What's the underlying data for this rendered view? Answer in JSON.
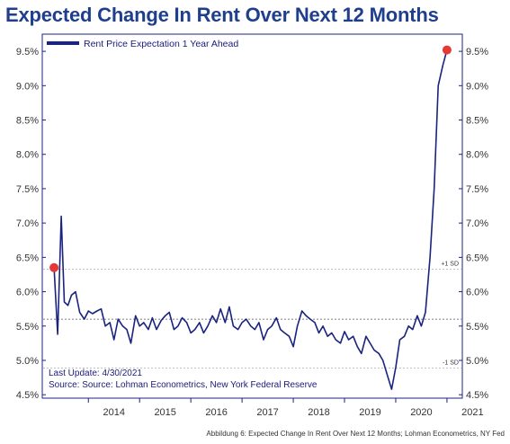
{
  "chart_data": {
    "type": "line",
    "title": "Expected Change In Rent Over Next 12 Months",
    "series": [
      {
        "name": "Rent Price Expectation 1 Year Ahead",
        "color": "#1a237e",
        "x": [
          2013.33,
          2013.4,
          2013.47,
          2013.53,
          2013.6,
          2013.67,
          2013.75,
          2013.83,
          2013.92,
          2014.0,
          2014.08,
          2014.17,
          2014.25,
          2014.33,
          2014.42,
          2014.5,
          2014.58,
          2014.67,
          2014.75,
          2014.83,
          2014.92,
          2015.0,
          2015.08,
          2015.17,
          2015.25,
          2015.33,
          2015.42,
          2015.5,
          2015.58,
          2015.67,
          2015.75,
          2015.83,
          2015.92,
          2016.0,
          2016.08,
          2016.17,
          2016.25,
          2016.33,
          2016.42,
          2016.5,
          2016.58,
          2016.67,
          2016.75,
          2016.83,
          2016.92,
          2017.0,
          2017.08,
          2017.17,
          2017.25,
          2017.33,
          2017.42,
          2017.5,
          2017.58,
          2017.67,
          2017.75,
          2017.83,
          2017.92,
          2018.0,
          2018.08,
          2018.17,
          2018.25,
          2018.33,
          2018.42,
          2018.5,
          2018.58,
          2018.67,
          2018.75,
          2018.83,
          2018.92,
          2019.0,
          2019.08,
          2019.17,
          2019.25,
          2019.33,
          2019.42,
          2019.5,
          2019.58,
          2019.67,
          2019.75,
          2019.83,
          2019.92,
          2020.0,
          2020.08,
          2020.17,
          2020.25,
          2020.33,
          2020.42,
          2020.5,
          2020.58,
          2020.67,
          2020.75,
          2020.83,
          2020.92,
          2021.0
        ],
        "y": [
          6.35,
          5.38,
          7.1,
          5.85,
          5.8,
          5.95,
          6.0,
          5.7,
          5.6,
          5.72,
          5.68,
          5.72,
          5.75,
          5.5,
          5.55,
          5.3,
          5.6,
          5.5,
          5.45,
          5.25,
          5.65,
          5.5,
          5.55,
          5.45,
          5.62,
          5.45,
          5.58,
          5.65,
          5.7,
          5.45,
          5.5,
          5.62,
          5.55,
          5.4,
          5.45,
          5.55,
          5.4,
          5.5,
          5.65,
          5.55,
          5.75,
          5.55,
          5.78,
          5.5,
          5.45,
          5.55,
          5.6,
          5.5,
          5.45,
          5.55,
          5.3,
          5.45,
          5.5,
          5.62,
          5.45,
          5.4,
          5.35,
          5.2,
          5.5,
          5.72,
          5.65,
          5.6,
          5.55,
          5.4,
          5.5,
          5.35,
          5.4,
          5.3,
          5.25,
          5.42,
          5.3,
          5.35,
          5.2,
          5.1,
          5.35,
          5.25,
          5.15,
          5.1,
          5.0,
          4.8,
          4.58,
          4.9,
          5.3,
          5.35,
          5.5,
          5.45,
          5.65,
          5.5,
          5.7,
          6.5,
          7.5,
          9.0,
          9.3,
          9.52
        ]
      }
    ],
    "highlight_points": [
      {
        "x": 2013.33,
        "y": 6.35,
        "color": "#e53935"
      },
      {
        "x": 2021.0,
        "y": 9.52,
        "color": "#e53935"
      }
    ],
    "reference_lines": [
      {
        "y": 6.33,
        "label": "+1 SD"
      },
      {
        "y": 5.6,
        "label": ""
      },
      {
        "y": 4.89,
        "label": "-1 SD"
      }
    ],
    "x_ticks": [
      "2014",
      "2015",
      "2016",
      "2017",
      "2018",
      "2019",
      "2020",
      "2021"
    ],
    "y_ticks": [
      "9.5%",
      "9.0%",
      "8.5%",
      "8.0%",
      "7.5%",
      "7.0%",
      "6.5%",
      "6.0%",
      "5.5%",
      "5.0%",
      "4.5%"
    ],
    "xlim": [
      2013.1,
      2021.3
    ],
    "ylim": [
      4.45,
      9.75
    ],
    "grid": false,
    "legend_position": "top-left",
    "notes": [
      "Last Update: 4/30/2021",
      "Source: Source: Lohman Econometrics, New York Federal Reserve"
    ]
  },
  "caption": "Abbildung 6: Expected Change In Rent Over Next 12 Months; Lohman Econometrics, NY Fed"
}
